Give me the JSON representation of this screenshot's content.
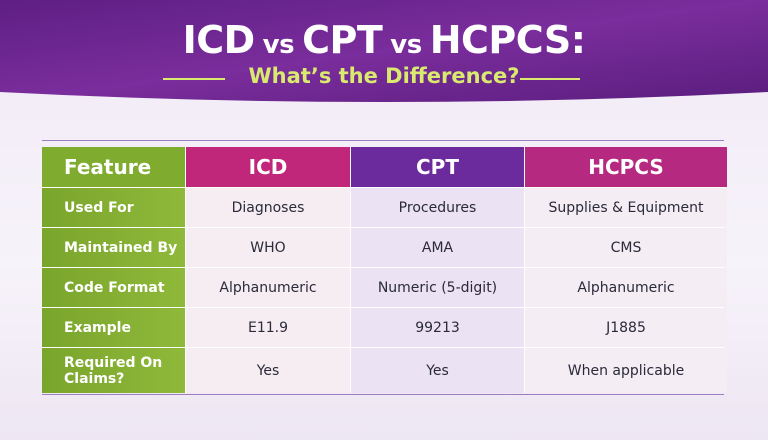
{
  "header": {
    "title_parts": [
      "ICD",
      "vs",
      "CPT",
      "vs",
      "HCPCS:"
    ],
    "subtitle": "What’s the Difference?"
  },
  "table": {
    "header": [
      "Feature",
      "ICD",
      "CPT",
      "HCPCS"
    ],
    "rows": [
      [
        "Used For",
        "Diagnoses",
        "Procedures",
        "Supplies & Equipment"
      ],
      [
        "Maintained By",
        "WHO",
        "AMA",
        "CMS"
      ],
      [
        "Code Format",
        "Alphanumeric",
        "Numeric (5-digit)",
        "Alphanumeric"
      ],
      [
        "Example",
        "E11.9",
        "99213",
        "J1885"
      ],
      [
        "Required On Claims?",
        "Yes",
        "Yes",
        "When applicable"
      ]
    ]
  }
}
